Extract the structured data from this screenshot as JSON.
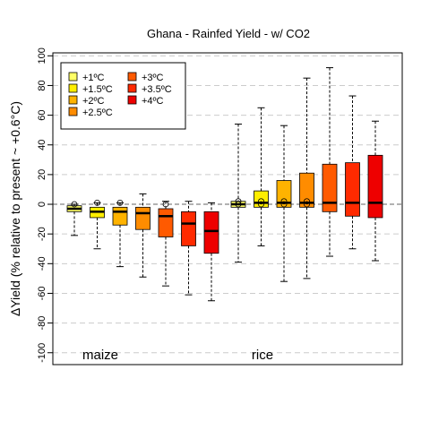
{
  "chart_data": {
    "type": "box",
    "title": "Ghana - Rainfed Yield - w/ CO2",
    "ylabel": "ΔYield (% relative to present ~ +0.6°C)",
    "xlabel": "",
    "ylim": [
      -108,
      102
    ],
    "yticks": [
      -100,
      -80,
      -60,
      -40,
      -20,
      0,
      20,
      40,
      60,
      80,
      100
    ],
    "grid": "horizontal-dashed",
    "legend_position": "top-left",
    "legend": [
      {
        "label": "+1ºC",
        "color": "#ffff66"
      },
      {
        "label": "+1.5ºC",
        "color": "#ffee00"
      },
      {
        "label": "+2ºC",
        "color": "#ffb300"
      },
      {
        "label": "+2.5ºC",
        "color": "#ff8c00"
      },
      {
        "label": "+3ºC",
        "color": "#ff5a00"
      },
      {
        "label": "+3.5ºC",
        "color": "#ff2a00"
      },
      {
        "label": "+4ºC",
        "color": "#ee0000"
      }
    ],
    "groups": [
      {
        "label": "maize",
        "boxes": [
          {
            "warming": "+1ºC",
            "min": -21,
            "q1": -5,
            "median": -3,
            "q3": -1,
            "max": 0,
            "outliers": [
              0
            ]
          },
          {
            "warming": "+1.5ºC",
            "min": -30,
            "q1": -9,
            "median": -5,
            "q3": -2,
            "max": 1,
            "outliers": [
              1
            ]
          },
          {
            "warming": "+2ºC",
            "min": -42,
            "q1": -14,
            "median": -5,
            "q3": -2,
            "max": 1,
            "outliers": [
              1
            ]
          },
          {
            "warming": "+2.5ºC",
            "min": -49,
            "q1": -17,
            "median": -6,
            "q3": -2,
            "max": 7,
            "outliers": []
          },
          {
            "warming": "+3ºC",
            "min": -55,
            "q1": -22,
            "median": -8,
            "q3": -3,
            "max": 2,
            "outliers": [
              0
            ]
          },
          {
            "warming": "+3.5ºC",
            "min": -61,
            "q1": -28,
            "median": -13,
            "q3": -5,
            "max": 2,
            "outliers": []
          },
          {
            "warming": "+4ºC",
            "min": -65,
            "q1": -33,
            "median": -18,
            "q3": -5,
            "max": 1,
            "outliers": []
          }
        ]
      },
      {
        "label": "rice",
        "boxes": [
          {
            "warming": "+1ºC",
            "min": -39,
            "q1": -2,
            "median": 0,
            "q3": 2,
            "max": 54,
            "outliers": [
              0,
              2
            ]
          },
          {
            "warming": "+1.5ºC",
            "min": -28,
            "q1": -2,
            "median": 1,
            "q3": 9,
            "max": 65,
            "outliers": [
              0,
              2
            ]
          },
          {
            "warming": "+2ºC",
            "min": -52,
            "q1": -2,
            "median": 1,
            "q3": 16,
            "max": 53,
            "outliers": [
              0,
              2
            ]
          },
          {
            "warming": "+2.5ºC",
            "min": -50,
            "q1": -2,
            "median": 1,
            "q3": 21,
            "max": 85,
            "outliers": [
              0,
              2
            ]
          },
          {
            "warming": "+3ºC",
            "min": -35,
            "q1": -5,
            "median": 1,
            "q3": 27,
            "max": 92,
            "outliers": []
          },
          {
            "warming": "+3.5ºC",
            "min": -30,
            "q1": -8,
            "median": 1,
            "q3": 28,
            "max": 73,
            "outliers": []
          },
          {
            "warming": "+4ºC",
            "min": -38,
            "q1": -9,
            "median": 1,
            "q3": 33,
            "max": 56,
            "outliers": []
          }
        ]
      }
    ]
  }
}
